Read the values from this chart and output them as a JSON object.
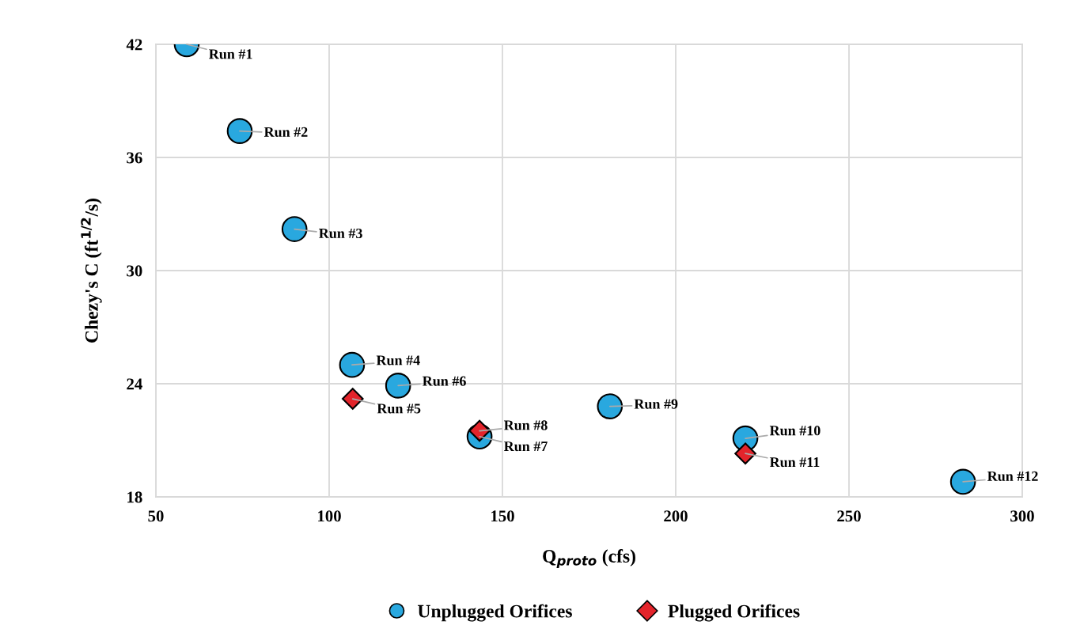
{
  "chart_data": {
    "type": "scatter",
    "xlabel": "Q$_{proto}$ (cfs)",
    "ylabel": "Chezy's C (ft$^{1/2}$/s)",
    "series": [
      {
        "name": "Unplugged Orifices",
        "color": "#29a8df",
        "marker": "circle",
        "x": [
          58.9,
          74.2,
          90.0,
          106.6,
          119.9,
          143.4,
          181.0,
          220.1,
          282.9
        ],
        "values": [
          42.0,
          37.4,
          32.2,
          25.0,
          23.9,
          21.2,
          22.8,
          21.1,
          18.8
        ]
      },
      {
        "name": "Plugged Orifices",
        "color": "#e3242b",
        "marker": "diamond",
        "x": [
          106.8,
          143.4,
          220.1
        ],
        "values": [
          23.2,
          21.5,
          20.3
        ]
      }
    ],
    "annotations": [
      {
        "text": "Run #1",
        "x": 58.9,
        "y": 42.0
      },
      {
        "text": "Run #2",
        "x": 74.2,
        "y": 37.4
      },
      {
        "text": "Run #3",
        "x": 90.0,
        "y": 32.2
      },
      {
        "text": "Run #4",
        "x": 106.6,
        "y": 25.0
      },
      {
        "text": "Run #5",
        "x": 106.8,
        "y": 23.2
      },
      {
        "text": "Run #6",
        "x": 119.9,
        "y": 23.9
      },
      {
        "text": "Run #7",
        "x": 143.4,
        "y": 21.2
      },
      {
        "text": "Run #8",
        "x": 143.4,
        "y": 21.5
      },
      {
        "text": "Run #9",
        "x": 181.0,
        "y": 22.8
      },
      {
        "text": "Run #10",
        "x": 220.1,
        "y": 21.1
      },
      {
        "text": "Run #11",
        "x": 220.1,
        "y": 20.3
      },
      {
        "text": "Run #12",
        "x": 282.9,
        "y": 18.8
      }
    ],
    "xlim": [
      50,
      300
    ],
    "xticks": [
      50,
      100,
      150,
      200,
      250,
      300
    ],
    "ylim": [
      18,
      42
    ],
    "yticks": [
      18,
      24,
      30,
      36,
      42
    ],
    "grid": true,
    "legend": "bottom"
  }
}
